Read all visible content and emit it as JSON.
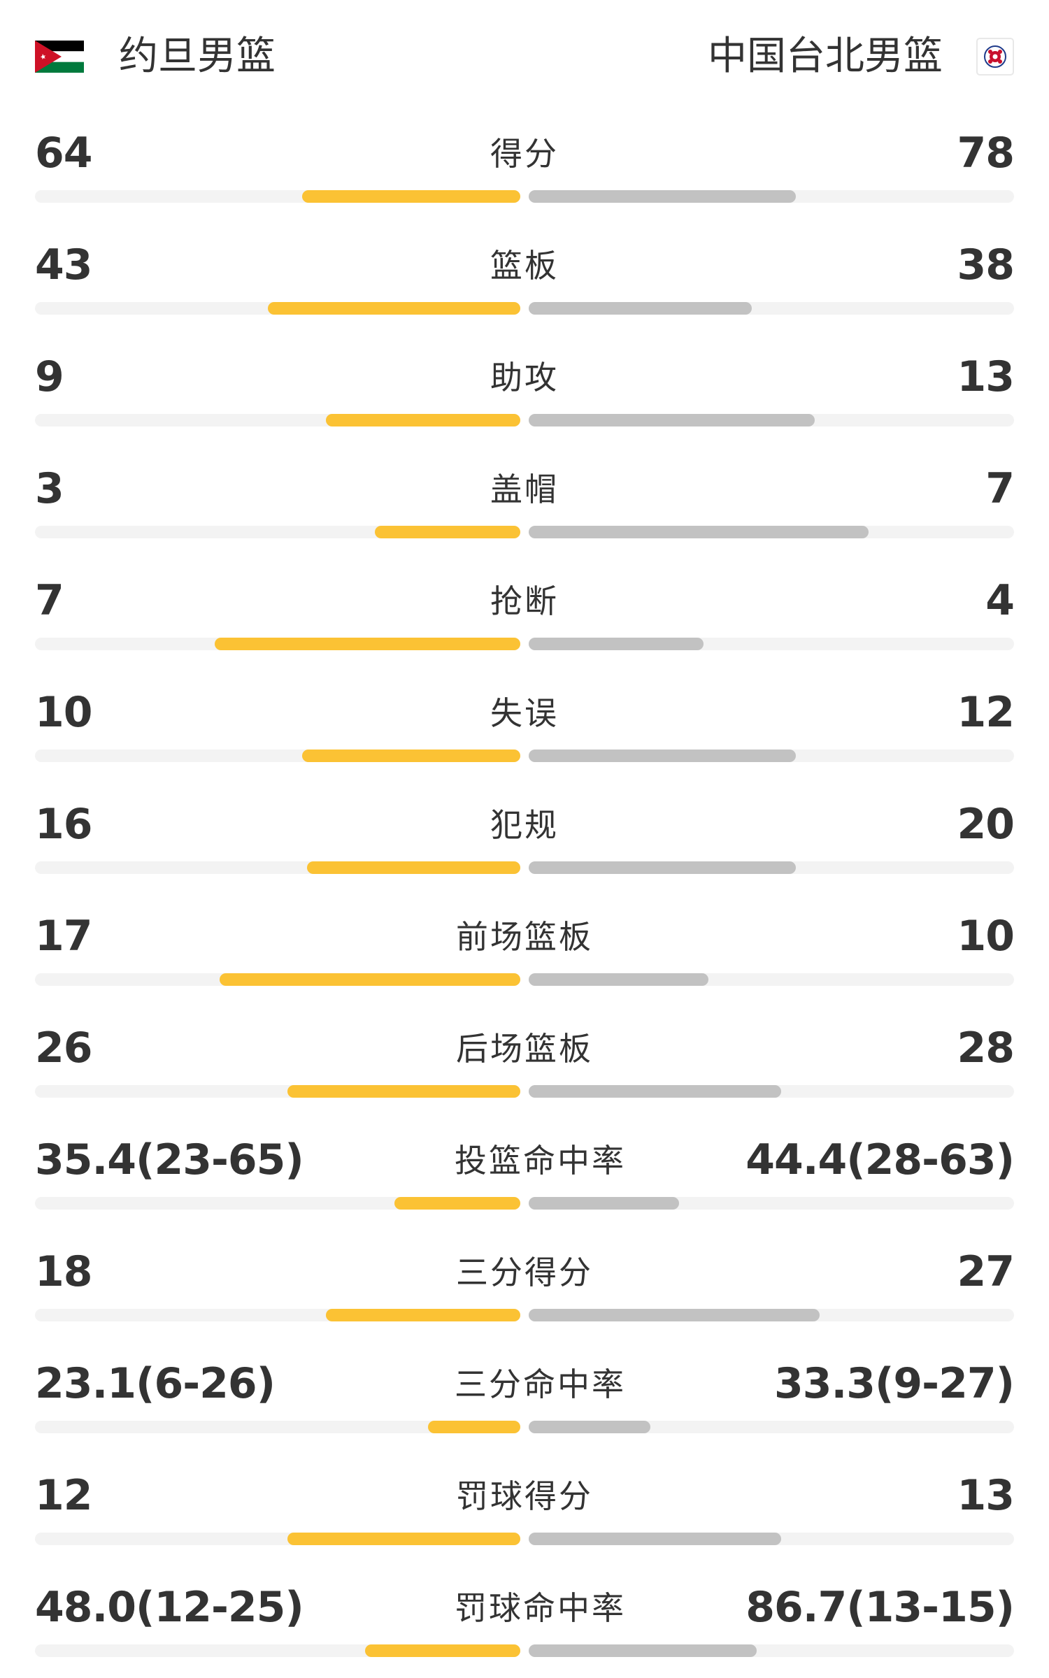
{
  "teams": {
    "home": {
      "name": "约旦男篮",
      "flag_icon": "jordan-flag-icon"
    },
    "away": {
      "name": "中国台北男篮",
      "flag_icon": "chinese-taipei-flag-icon"
    }
  },
  "colors": {
    "home_bar": "#fbc234",
    "away_bar": "#c2c2c2",
    "track": "#f3f3f3",
    "text": "#333333"
  },
  "stats": [
    {
      "label": "得分",
      "home": "64",
      "away": "78",
      "home_fill": 0.45,
      "away_fill": 0.55
    },
    {
      "label": "篮板",
      "home": "43",
      "away": "38",
      "home_fill": 0.52,
      "away_fill": 0.46
    },
    {
      "label": "助攻",
      "home": "9",
      "away": "13",
      "home_fill": 0.4,
      "away_fill": 0.59
    },
    {
      "label": "盖帽",
      "home": "3",
      "away": "7",
      "home_fill": 0.3,
      "away_fill": 0.7
    },
    {
      "label": "抢断",
      "home": "7",
      "away": "4",
      "home_fill": 0.63,
      "away_fill": 0.36
    },
    {
      "label": "失误",
      "home": "10",
      "away": "12",
      "home_fill": 0.45,
      "away_fill": 0.55
    },
    {
      "label": "犯规",
      "home": "16",
      "away": "20",
      "home_fill": 0.44,
      "away_fill": 0.55
    },
    {
      "label": "前场篮板",
      "home": "17",
      "away": "10",
      "home_fill": 0.62,
      "away_fill": 0.37
    },
    {
      "label": "后场篮板",
      "home": "26",
      "away": "28",
      "home_fill": 0.48,
      "away_fill": 0.52
    },
    {
      "label": "投篮命中率",
      "home": "35.4(23-65)",
      "away": "44.4(28-63)",
      "home_fill": 0.26,
      "away_fill": 0.31
    },
    {
      "label": "三分得分",
      "home": "18",
      "away": "27",
      "home_fill": 0.4,
      "away_fill": 0.6
    },
    {
      "label": "三分命中率",
      "home": "23.1(6-26)",
      "away": "33.3(9-27)",
      "home_fill": 0.19,
      "away_fill": 0.25
    },
    {
      "label": "罚球得分",
      "home": "12",
      "away": "13",
      "home_fill": 0.48,
      "away_fill": 0.52
    },
    {
      "label": "罚球命中率",
      "home": "48.0(12-25)",
      "away": "86.7(13-15)",
      "home_fill": 0.32,
      "away_fill": 0.47
    }
  ]
}
